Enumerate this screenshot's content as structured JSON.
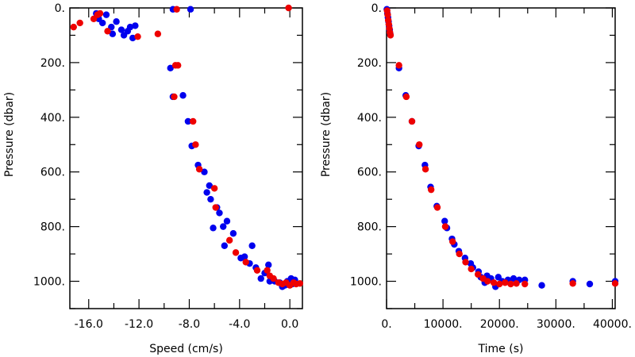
{
  "chart_data": [
    {
      "type": "scatter",
      "xlabel": "Speed (cm/s)",
      "ylabel": "Pressure (dbar)",
      "xlim": [
        -17.5,
        1.0
      ],
      "ylim": [
        1100,
        0
      ],
      "y_inverted": true,
      "xticks": [
        -16.0,
        -12.0,
        -8.0,
        -4.0,
        0.0
      ],
      "xtick_labels": [
        "-16.0",
        "-12.0",
        "-8.0",
        "-4.0",
        "0.0"
      ],
      "yticks": [
        0,
        200,
        400,
        600,
        800,
        1000
      ],
      "ytick_labels": [
        "0.",
        "200.",
        "400.",
        "600.",
        "800.",
        "1000."
      ],
      "grid": false,
      "series": [
        {
          "color": "#0000ee",
          "points": [
            [
              -15.4,
              20
            ],
            [
              -15.2,
              40
            ],
            [
              -14.9,
              55
            ],
            [
              -14.6,
              25
            ],
            [
              -14.2,
              70
            ],
            [
              -14.1,
              95
            ],
            [
              -13.8,
              50
            ],
            [
              -13.4,
              80
            ],
            [
              -13.2,
              100
            ],
            [
              -12.9,
              85
            ],
            [
              -12.7,
              70
            ],
            [
              -12.5,
              110
            ],
            [
              -12.3,
              65
            ],
            [
              -9.3,
              5
            ],
            [
              -7.9,
              5
            ],
            [
              -9.5,
              220
            ],
            [
              -9.3,
              325
            ],
            [
              -8.5,
              320
            ],
            [
              -8.1,
              415
            ],
            [
              -7.8,
              505
            ],
            [
              -7.3,
              575
            ],
            [
              -6.8,
              600
            ],
            [
              -6.6,
              675
            ],
            [
              -6.4,
              650
            ],
            [
              -6.3,
              700
            ],
            [
              -6.1,
              805
            ],
            [
              -5.8,
              730
            ],
            [
              -5.6,
              750
            ],
            [
              -5.3,
              800
            ],
            [
              -5.2,
              870
            ],
            [
              -5.0,
              780
            ],
            [
              -4.5,
              825
            ],
            [
              -3.9,
              915
            ],
            [
              -3.6,
              910
            ],
            [
              -3.2,
              935
            ],
            [
              -3.0,
              870
            ],
            [
              -2.7,
              950
            ],
            [
              -2.3,
              990
            ],
            [
              -2.0,
              970
            ],
            [
              -1.7,
              940
            ],
            [
              -1.6,
              1000
            ],
            [
              -1.2,
              1000
            ],
            [
              -0.8,
              1005
            ],
            [
              -0.6,
              1020
            ],
            [
              -0.4,
              1015
            ],
            [
              -0.2,
              1000
            ],
            [
              0.1,
              990
            ],
            [
              0.2,
              1010
            ],
            [
              0.4,
              995
            ]
          ]
        },
        {
          "color": "#ee0000",
          "points": [
            [
              -17.2,
              70
            ],
            [
              -16.7,
              55
            ],
            [
              -15.6,
              40
            ],
            [
              -15.3,
              25
            ],
            [
              -15.1,
              20
            ],
            [
              -14.5,
              85
            ],
            [
              -12.1,
              105
            ],
            [
              -10.5,
              95
            ],
            [
              -9.0,
              5
            ],
            [
              -0.1,
              0
            ],
            [
              -9.1,
              210
            ],
            [
              -8.9,
              210
            ],
            [
              -9.2,
              325
            ],
            [
              -7.7,
              415
            ],
            [
              -7.5,
              500
            ],
            [
              -7.2,
              590
            ],
            [
              -6.0,
              660
            ],
            [
              -5.9,
              730
            ],
            [
              -4.8,
              850
            ],
            [
              -4.3,
              895
            ],
            [
              -3.5,
              930
            ],
            [
              -2.6,
              960
            ],
            [
              -1.8,
              960
            ],
            [
              -1.6,
              980
            ],
            [
              -1.3,
              990
            ],
            [
              -0.9,
              1005
            ],
            [
              -0.6,
              1010
            ],
            [
              -0.3,
              1005
            ],
            [
              0.0,
              1015
            ],
            [
              0.3,
              1005
            ],
            [
              0.5,
              1010
            ],
            [
              0.8,
              1008
            ]
          ]
        }
      ]
    },
    {
      "type": "scatter",
      "xlabel": "Time (s)",
      "ylabel": "Pressure (dbar)",
      "xlim": [
        0,
        40500
      ],
      "ylim": [
        1100,
        0
      ],
      "y_inverted": true,
      "xticks": [
        0,
        10000,
        20000,
        30000,
        40000
      ],
      "xtick_labels": [
        "0.",
        "10000.",
        "20000.",
        "30000.",
        "40000."
      ],
      "yticks": [
        0,
        200,
        400,
        600,
        800,
        1000
      ],
      "ytick_labels": [
        "0.",
        "200.",
        "400.",
        "600.",
        "800.",
        "1000."
      ],
      "grid": false,
      "series": [
        {
          "color": "#0000ee",
          "points": [
            [
              50,
              5
            ],
            [
              150,
              20
            ],
            [
              250,
              35
            ],
            [
              350,
              50
            ],
            [
              450,
              65
            ],
            [
              550,
              80
            ],
            [
              650,
              95
            ],
            [
              2200,
              220
            ],
            [
              3400,
              320
            ],
            [
              4500,
              415
            ],
            [
              5700,
              505
            ],
            [
              6800,
              575
            ],
            [
              7800,
              655
            ],
            [
              8900,
              725
            ],
            [
              10300,
              780
            ],
            [
              10700,
              805
            ],
            [
              11600,
              845
            ],
            [
              12000,
              865
            ],
            [
              12800,
              890
            ],
            [
              13900,
              915
            ],
            [
              14900,
              935
            ],
            [
              15300,
              950
            ],
            [
              16300,
              965
            ],
            [
              16700,
              985
            ],
            [
              17400,
              1005
            ],
            [
              17800,
              980
            ],
            [
              18500,
              990
            ],
            [
              19300,
              1020
            ],
            [
              19800,
              985
            ],
            [
              20500,
              1000
            ],
            [
              21500,
              995
            ],
            [
              22500,
              990
            ],
            [
              23500,
              995
            ],
            [
              24500,
              995
            ],
            [
              27500,
              1015
            ],
            [
              33000,
              1000
            ],
            [
              36000,
              1010
            ],
            [
              40500,
              1000
            ]
          ]
        },
        {
          "color": "#ee0000",
          "points": [
            [
              100,
              10
            ],
            [
              200,
              25
            ],
            [
              300,
              45
            ],
            [
              400,
              60
            ],
            [
              500,
              75
            ],
            [
              600,
              90
            ],
            [
              700,
              100
            ],
            [
              2200,
              210
            ],
            [
              3500,
              325
            ],
            [
              4500,
              415
            ],
            [
              5800,
              500
            ],
            [
              6900,
              590
            ],
            [
              7900,
              665
            ],
            [
              9000,
              730
            ],
            [
              10400,
              800
            ],
            [
              11700,
              855
            ],
            [
              12900,
              900
            ],
            [
              14000,
              930
            ],
            [
              15000,
              955
            ],
            [
              16200,
              975
            ],
            [
              17100,
              990
            ],
            [
              17900,
              1000
            ],
            [
              19000,
              1005
            ],
            [
              20000,
              1010
            ],
            [
              21000,
              1005
            ],
            [
              22000,
              1010
            ],
            [
              23000,
              1008
            ],
            [
              24500,
              1010
            ],
            [
              33000,
              1008
            ],
            [
              40500,
              1008
            ]
          ]
        }
      ]
    }
  ]
}
